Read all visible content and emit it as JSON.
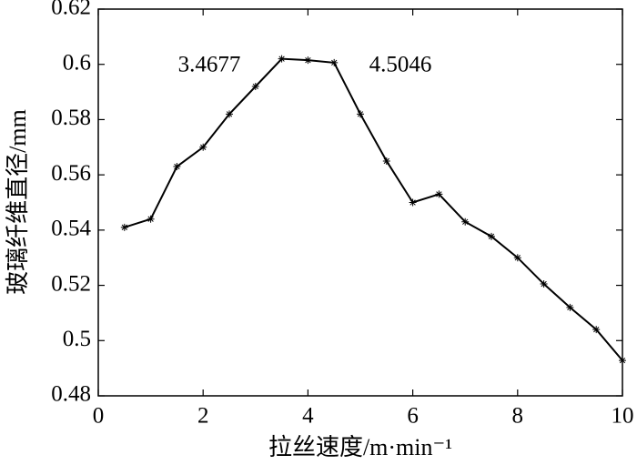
{
  "chart_data": {
    "type": "line",
    "x_label": "拉丝速度/m·min⁻¹",
    "y_label": "玻璃纤维直径/mm",
    "annotations": [
      "3.4677",
      "4.5046"
    ],
    "x": [
      0.5,
      1,
      1.5,
      2,
      2.5,
      3,
      3.5,
      4,
      4.5,
      5,
      5.5,
      6,
      6.5,
      7,
      7.5,
      8,
      8.5,
      9,
      9.5,
      10
    ],
    "values": [
      0.541,
      0.544,
      0.563,
      0.57,
      0.582,
      0.592,
      0.602,
      0.6015,
      0.6006,
      0.582,
      0.565,
      0.55,
      0.553,
      0.543,
      0.5377,
      0.53,
      0.5205,
      0.512,
      0.504,
      0.4928
    ],
    "color": "#000000",
    "marker": "*",
    "xlim": [
      0,
      10
    ],
    "xticks": [
      0,
      2,
      4,
      6,
      8,
      10
    ],
    "ylim": [
      0.48,
      0.62
    ],
    "yticks": [
      0.48,
      0.5,
      0.52,
      0.54,
      0.56,
      0.58,
      0.6,
      0.62
    ],
    "grid": false
  }
}
